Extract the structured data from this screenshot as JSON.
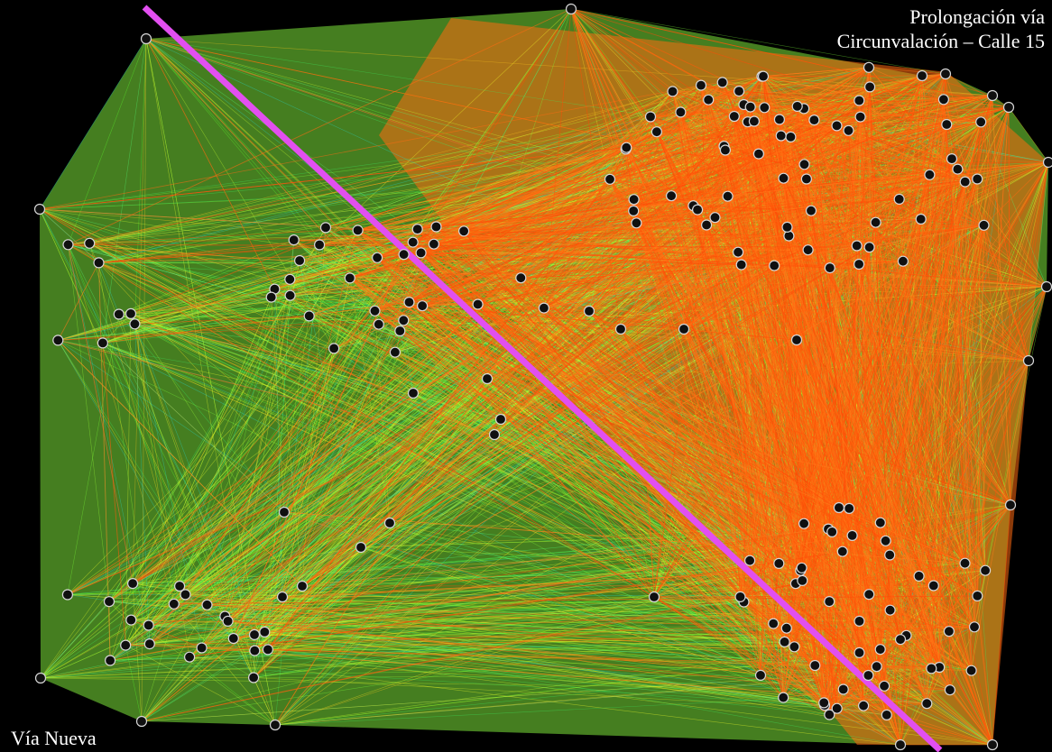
{
  "labels": {
    "top_line1": "Prolongación vía",
    "top_line2": "Circunvalación – Calle 15",
    "bottom": "Vía Nueva"
  },
  "colors": {
    "background": "#000000",
    "dense_edges": "#ff5a0a",
    "medium_edges": "#ffe21e",
    "sparse_edges": "#5dff2e",
    "outer_edges": "#2bd8c8",
    "nodes_fill": "#101010",
    "nodes_stroke": "#d8d8d8",
    "divider_line": "#e24ff0"
  },
  "graph": {
    "description_icon": "network-graph",
    "node_count": 180
  }
}
